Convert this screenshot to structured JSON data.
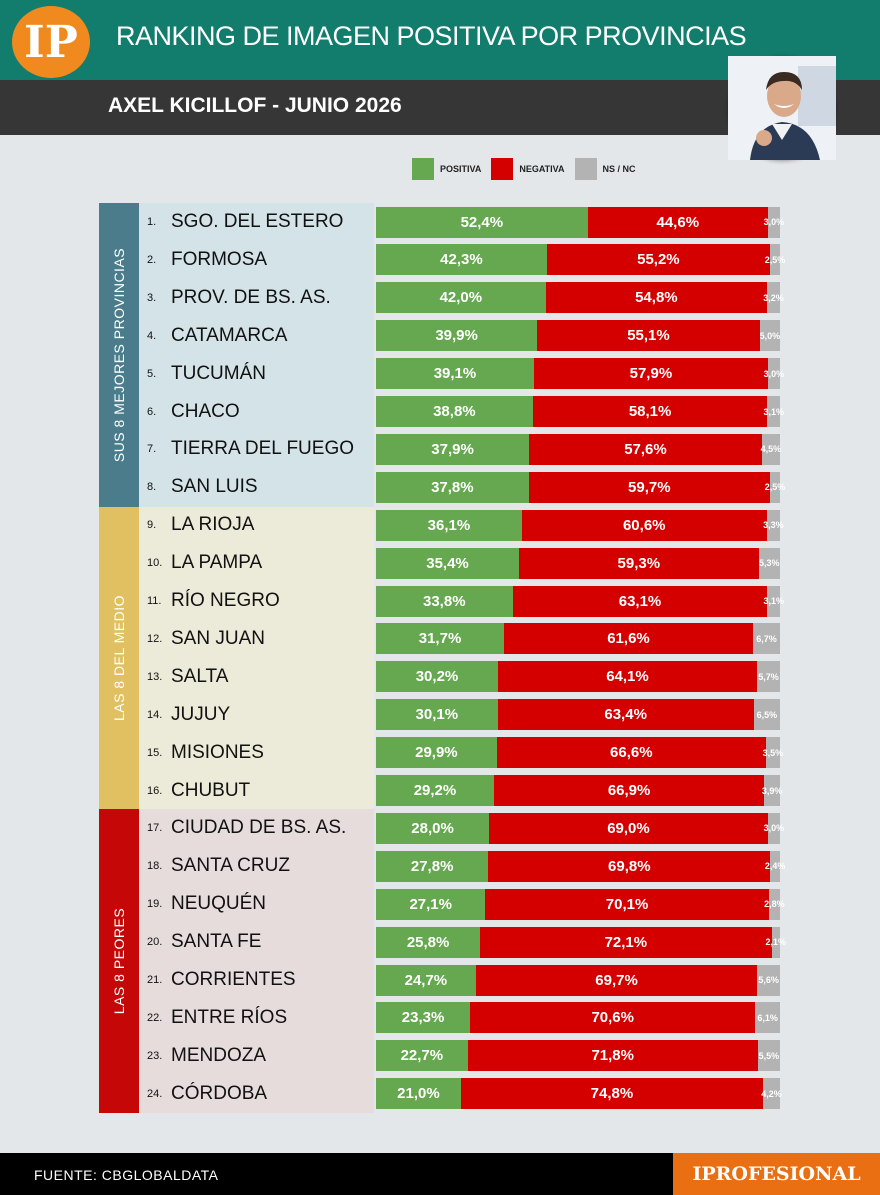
{
  "header": {
    "logo_text": "IP",
    "title": "RANKING DE IMAGEN POSITIVA POR PROVINCIAS",
    "subtitle": "AXEL KICILLOF - JUNIO 2026",
    "colors": {
      "header_bg": "#127d6c",
      "subbar_bg": "#373637",
      "logo_bg": "#f08a1e"
    }
  },
  "legend": [
    {
      "label": "POSITIVA",
      "color": "#66a84f"
    },
    {
      "label": "NEGATIVA",
      "color": "#d40000"
    },
    {
      "label": "NS / NC",
      "color": "#b3b3b3"
    }
  ],
  "groups": [
    {
      "label": "SUS 8 MEJORES PROVINCIAS",
      "tab_color": "#4a7c8c",
      "panel_color": "#d4e3e7"
    },
    {
      "label": "LAS 8 DEL MEDIO",
      "tab_color": "#e0c061",
      "panel_color": "#ecebd9"
    },
    {
      "label": "LAS 8 PEORES",
      "tab_color": "#c60707",
      "panel_color": "#e6dcdc"
    }
  ],
  "chart_data": {
    "type": "bar",
    "stacked": true,
    "orientation": "horizontal",
    "ranks": [
      "1.",
      "2.",
      "3.",
      "4.",
      "5.",
      "6.",
      "7.",
      "8.",
      "9.",
      "10.",
      "11.",
      "12.",
      "13.",
      "14.",
      "15.",
      "16.",
      "17.",
      "18.",
      "19.",
      "20.",
      "21.",
      "22.",
      "23.",
      "24."
    ],
    "categories": [
      "SGO. DEL ESTERO",
      "FORMOSA",
      "PROV. DE BS. AS.",
      "CATAMARCA",
      "TUCUMÁN",
      "CHACO",
      "TIERRA DEL FUEGO",
      "SAN LUIS",
      "LA RIOJA",
      "LA PAMPA",
      "RÍO NEGRO",
      "SAN JUAN",
      "SALTA",
      "JUJUY",
      "MISIONES",
      "CHUBUT",
      "CIUDAD DE BS. AS.",
      "SANTA CRUZ",
      "NEUQUÉN",
      "SANTA FE",
      "CORRIENTES",
      "ENTRE RÍOS",
      "MENDOZA",
      "CÓRDOBA"
    ],
    "series": [
      {
        "name": "POSITIVA",
        "values": [
          52.4,
          42.3,
          42.0,
          39.9,
          39.1,
          38.8,
          37.9,
          37.8,
          36.1,
          35.4,
          33.8,
          31.7,
          30.2,
          30.1,
          29.9,
          29.2,
          28.0,
          27.8,
          27.1,
          25.8,
          24.7,
          23.3,
          22.7,
          21.0
        ],
        "labels": [
          "52,4%",
          "42,3%",
          "42,0%",
          "39,9%",
          "39,1%",
          "38,8%",
          "37,9%",
          "37,8%",
          "36,1%",
          "35,4%",
          "33,8%",
          "31,7%",
          "30,2%",
          "30,1%",
          "29,9%",
          "29,2%",
          "28,0%",
          "27,8%",
          "27,1%",
          "25,8%",
          "24,7%",
          "23,3%",
          "22,7%",
          "21,0%"
        ]
      },
      {
        "name": "NEGATIVA",
        "values": [
          44.6,
          55.2,
          54.8,
          55.1,
          57.9,
          58.1,
          57.6,
          59.7,
          60.6,
          59.3,
          63.1,
          61.6,
          64.1,
          63.4,
          66.6,
          66.9,
          69.0,
          69.8,
          70.1,
          72.1,
          69.7,
          70.6,
          71.8,
          74.8
        ],
        "labels": [
          "44,6%",
          "55,2%",
          "54,8%",
          "55,1%",
          "57,9%",
          "58,1%",
          "57,6%",
          "59,7%",
          "60,6%",
          "59,3%",
          "63,1%",
          "61,6%",
          "64,1%",
          "63,4%",
          "66,6%",
          "66,9%",
          "69,0%",
          "69,8%",
          "70,1%",
          "72,1%",
          "69,7%",
          "70,6%",
          "71,8%",
          "74,8%"
        ]
      },
      {
        "name": "NS / NC",
        "values": [
          3.0,
          2.5,
          3.2,
          5.0,
          3.0,
          3.1,
          4.5,
          2.5,
          3.3,
          5.3,
          3.1,
          6.7,
          5.7,
          6.5,
          3.5,
          3.9,
          3.0,
          2.4,
          2.8,
          2.1,
          5.6,
          6.1,
          5.5,
          4.2
        ],
        "labels": [
          "3,0%",
          "2,5%",
          "3,2%",
          "5,0%",
          "3,0%",
          "3,1%",
          "4,5%",
          "2,5%",
          "3,3%",
          "5,3%",
          "3,1%",
          "6,7%",
          "5,7%",
          "6,5%",
          "3,5%",
          "3,9%",
          "3,0%",
          "2,4%",
          "2,8%",
          "2,1%",
          "5,6%",
          "6,1%",
          "5,5%",
          "4,2%"
        ]
      }
    ],
    "xlim": [
      0,
      100
    ]
  },
  "footer": {
    "source": "FUENTE: CBGLOBALDATA",
    "brand": "IPROFESIONAL"
  }
}
